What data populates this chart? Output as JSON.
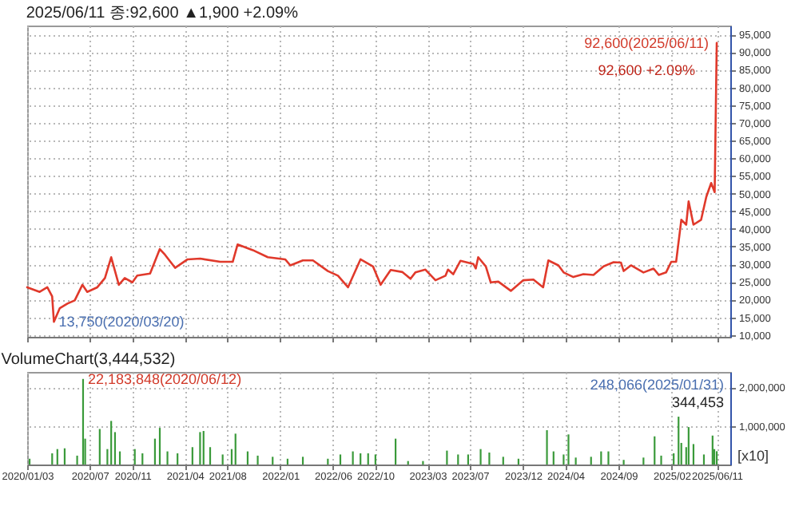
{
  "chart_data": [
    {
      "type": "line",
      "title": "2025/06/11 종:92,600 ▲1,900 +2.09%",
      "x": [
        "2020-01-03",
        "2020-02-08",
        "2020-03-01",
        "2020-03-15",
        "2020-03-20",
        "2020-04-06",
        "2020-04-28",
        "2020-05-19",
        "2020-06-10",
        "2020-06-24",
        "2020-07-23",
        "2020-08-14",
        "2020-09-01",
        "2020-09-23",
        "2020-10-10",
        "2020-11-01",
        "2020-11-15",
        "2020-12-22",
        "2021-01-19",
        "2021-02-03",
        "2021-03-04",
        "2021-04-09",
        "2021-05-15",
        "2021-07-12",
        "2021-08-17",
        "2021-08-31",
        "2021-10-14",
        "2021-11-26",
        "2022-01-15",
        "2022-01-30",
        "2022-03-07",
        "2022-04-05",
        "2022-05-18",
        "2022-06-16",
        "2022-07-15",
        "2022-08-20",
        "2022-09-25",
        "2022-10-17",
        "2022-11-15",
        "2022-12-19",
        "2023-01-11",
        "2023-01-25",
        "2023-02-23",
        "2023-03-24",
        "2023-04-22",
        "2023-04-29",
        "2023-05-14",
        "2023-06-04",
        "2023-07-11",
        "2023-07-18",
        "2023-07-25",
        "2023-08-16",
        "2023-08-30",
        "2023-09-21",
        "2023-10-27",
        "2023-12-02",
        "2023-12-31",
        "2024-01-28",
        "2024-02-12",
        "2024-03-12",
        "2024-03-27",
        "2024-04-24",
        "2024-05-23",
        "2024-06-21",
        "2024-07-20",
        "2024-08-18",
        "2024-09-08",
        "2024-09-16",
        "2024-10-07",
        "2024-11-12",
        "2024-12-11",
        "2024-12-26",
        "2025-01-16",
        "2025-01-31",
        "2025-02-14",
        "2025-03-01",
        "2025-03-15",
        "2025-03-22",
        "2025-04-05",
        "2025-04-27",
        "2025-05-12",
        "2025-05-26",
        "2025-06-05",
        "2025-06-11"
      ],
      "series": [
        {
          "color": "#e0392b",
          "values": [
            23500,
            22200,
            23500,
            20900,
            13750,
            17600,
            18900,
            19800,
            24200,
            22200,
            23500,
            26100,
            32000,
            24200,
            26100,
            24900,
            26800,
            27400,
            34300,
            32700,
            29000,
            31400,
            31600,
            30700,
            30700,
            35600,
            34000,
            32000,
            31400,
            29700,
            31100,
            31100,
            28100,
            26800,
            23500,
            31400,
            29400,
            24200,
            28400,
            27800,
            25900,
            27700,
            28500,
            25500,
            26800,
            28500,
            27200,
            31000,
            30100,
            28800,
            32000,
            29400,
            24900,
            25100,
            22500,
            25500,
            25700,
            23500,
            31100,
            29700,
            27700,
            26400,
            27200,
            27000,
            29400,
            30600,
            30500,
            28100,
            29700,
            27700,
            28800,
            27000,
            27700,
            30700,
            30700,
            42600,
            41200,
            47800,
            41200,
            42600,
            49100,
            53000,
            50400,
            92600
          ]
        }
      ],
      "xlim": [
        "2020-01-03",
        "2025-07-20"
      ],
      "xticks": [
        {
          "value": "2020-01-03",
          "label": null
        },
        {
          "value": "2020-07-01",
          "label": null
        },
        {
          "value": "2020-11-01",
          "label": null
        },
        {
          "value": "2021-04-01",
          "label": null
        },
        {
          "value": "2021-08-01",
          "label": null
        },
        {
          "value": "2022-01-01",
          "label": null
        },
        {
          "value": "2022-06-01",
          "label": null
        },
        {
          "value": "2022-10-01",
          "label": null
        },
        {
          "value": "2023-03-01",
          "label": null
        },
        {
          "value": "2023-07-01",
          "label": null
        },
        {
          "value": "2023-12-01",
          "label": null
        },
        {
          "value": "2024-04-01",
          "label": null
        },
        {
          "value": "2024-09-01",
          "label": null
        },
        {
          "value": "2025-02-01",
          "label": null
        },
        {
          "value": "2025-06-11",
          "label": null
        }
      ],
      "ylim": [
        9500,
        97500
      ],
      "yticks": [
        {
          "value": 10000,
          "label": "10,000"
        },
        {
          "value": 15000,
          "label": "15,000"
        },
        {
          "value": 20000,
          "label": "20,000"
        },
        {
          "value": 25000,
          "label": "25,000"
        },
        {
          "value": 30000,
          "label": "30,000"
        },
        {
          "value": 35000,
          "label": "35,000"
        },
        {
          "value": 40000,
          "label": "40,000"
        },
        {
          "value": 45000,
          "label": "45,000"
        },
        {
          "value": 50000,
          "label": "50,000"
        },
        {
          "value": 55000,
          "label": "55,000"
        },
        {
          "value": 60000,
          "label": "60,000"
        },
        {
          "value": 65000,
          "label": "65,000"
        },
        {
          "value": 70000,
          "label": "70,000"
        },
        {
          "value": 75000,
          "label": "75,000"
        },
        {
          "value": 80000,
          "label": "80,000"
        },
        {
          "value": 85000,
          "label": "85,000"
        },
        {
          "value": 90000,
          "label": "90,000"
        },
        {
          "value": 95000,
          "label": "95,000"
        }
      ],
      "grid": true,
      "tick_labels": "y",
      "annotations": [
        {
          "text": "13,750(2020/03/20)",
          "x": "2020-03-20",
          "y": 13750
        },
        {
          "text": "92,600(2025/06/11)",
          "x": "2025-06-11",
          "y": 92600
        },
        "92,600 +2.09%"
      ]
    },
    {
      "type": "bar",
      "title": "VolumeChart(3,444,532)",
      "ylabel": "[x10]",
      "x": [
        "2020-01-10",
        "2020-03-15",
        "2020-03-30",
        "2020-04-20",
        "2020-05-26",
        "2020-06-12",
        "2020-06-18",
        "2020-07-30",
        "2020-08-21",
        "2020-09-01",
        "2020-09-12",
        "2020-09-26",
        "2020-11-08",
        "2020-11-30",
        "2021-01-05",
        "2021-01-19",
        "2021-02-10",
        "2021-03-11",
        "2021-04-23",
        "2021-05-15",
        "2021-05-25",
        "2021-06-13",
        "2021-07-19",
        "2021-08-14",
        "2021-08-25",
        "2021-09-29",
        "2021-10-28",
        "2021-12-10",
        "2022-01-22",
        "2022-03-07",
        "2022-05-18",
        "2022-06-23",
        "2022-07-29",
        "2022-08-20",
        "2022-09-11",
        "2022-10-02",
        "2022-11-29",
        "2023-01-04",
        "2023-02-16",
        "2023-04-26",
        "2023-05-28",
        "2023-06-26",
        "2023-08-01",
        "2023-08-26",
        "2023-10-05",
        "2023-11-18",
        "2024-02-08",
        "2024-02-27",
        "2024-03-27",
        "2024-04-10",
        "2024-05-01",
        "2024-06-14",
        "2024-07-13",
        "2024-08-03",
        "2024-09-16",
        "2024-11-12",
        "2024-12-14",
        "2025-01-02",
        "2025-02-07",
        "2025-02-21",
        "2025-03-01",
        "2025-03-15",
        "2025-03-22",
        "2025-04-05",
        "2025-05-05",
        "2025-05-30",
        "2025-06-04",
        "2025-06-11"
      ],
      "series": [
        {
          "color": "#3a9a3a",
          "values": [
            150000,
            290000,
            400000,
            420000,
            230000,
            2218385,
            670000,
            920000,
            400000,
            1130000,
            840000,
            340000,
            400000,
            290000,
            670000,
            950000,
            340000,
            290000,
            450000,
            840000,
            870000,
            450000,
            260000,
            400000,
            800000,
            340000,
            230000,
            200000,
            150000,
            200000,
            150000,
            260000,
            340000,
            290000,
            290000,
            260000,
            670000,
            90000,
            90000,
            360000,
            260000,
            260000,
            400000,
            310000,
            200000,
            150000,
            890000,
            340000,
            260000,
            780000,
            180000,
            200000,
            340000,
            340000,
            120000,
            180000,
            730000,
            230000,
            290000,
            1240000,
            560000,
            450000,
            970000,
            530000,
            260000,
            750000,
            400000,
            344453
          ]
        }
      ],
      "xlim": [
        "2020-01-03",
        "2025-07-20"
      ],
      "xticks": [
        {
          "value": "2020-01-03",
          "label": "2020/01/03"
        },
        {
          "value": "2020-07-01",
          "label": "2020/07"
        },
        {
          "value": "2020-11-01",
          "label": "2020/11"
        },
        {
          "value": "2021-04-01",
          "label": "2021/04"
        },
        {
          "value": "2021-08-01",
          "label": "2021/08"
        },
        {
          "value": "2022-01-01",
          "label": "2022/01"
        },
        {
          "value": "2022-06-01",
          "label": "2022/06"
        },
        {
          "value": "2022-10-01",
          "label": "2022/10"
        },
        {
          "value": "2023-03-01",
          "label": "2023/03"
        },
        {
          "value": "2023-07-01",
          "label": "2023/07"
        },
        {
          "value": "2023-12-01",
          "label": "2023/12"
        },
        {
          "value": "2024-04-01",
          "label": "2024/04"
        },
        {
          "value": "2024-09-01",
          "label": "2024/09"
        },
        {
          "value": "2025-02-01",
          "label": "2025/02"
        },
        {
          "value": "2025-06-11",
          "label": "2025/06/11"
        }
      ],
      "ylim": [
        0,
        2400000
      ],
      "yticks": [
        {
          "value": 1000000,
          "label": "1,000,000"
        },
        {
          "value": 2000000,
          "label": "2,000,000"
        }
      ],
      "grid": true,
      "annotations": [
        {
          "text": "22,183,848(2020/06/12)",
          "x": "2020-06-12",
          "y": 2218385
        },
        "248,066(2025/01/31)",
        "344,453"
      ]
    }
  ]
}
